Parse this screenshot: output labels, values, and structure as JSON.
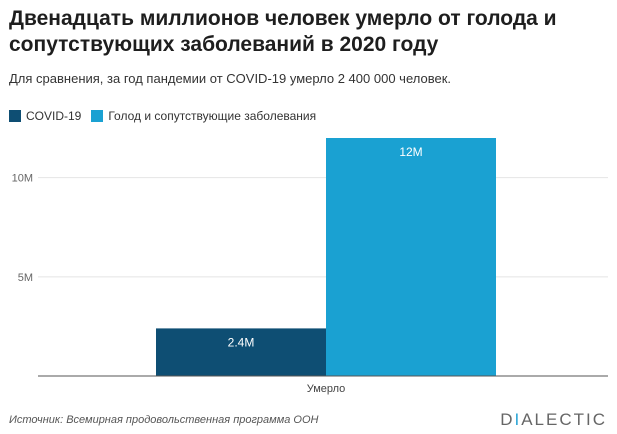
{
  "header": {
    "title": "Двенадцать миллионов человек умерло от голода и сопутствующих заболеваний в 2020 году",
    "subtitle": "Для сравнения, за год пандемии от COVID-19 умерло 2 400 000 человек."
  },
  "footer": {
    "source": "Источник: Всемирная продовольственная программа ООН",
    "brand_first": "D",
    "brand_accent": "I",
    "brand_rest": "ALECTIC"
  },
  "chart_data": {
    "type": "bar",
    "categories": [
      "Умерло"
    ],
    "series": [
      {
        "name": "COVID-19",
        "values": [
          2400000
        ],
        "label": "2.4M",
        "color": "#0e4e73"
      },
      {
        "name": "Голод и сопутствующие заболевания",
        "values": [
          12000000
        ],
        "label": "12M",
        "color": "#1aa1d2"
      }
    ],
    "ylim": [
      0,
      12000000
    ],
    "yticks": [
      {
        "value": 0,
        "label": ""
      },
      {
        "value": 5000000,
        "label": "5M"
      },
      {
        "value": 10000000,
        "label": "10M"
      }
    ],
    "grid": true,
    "legend": "top-left"
  }
}
